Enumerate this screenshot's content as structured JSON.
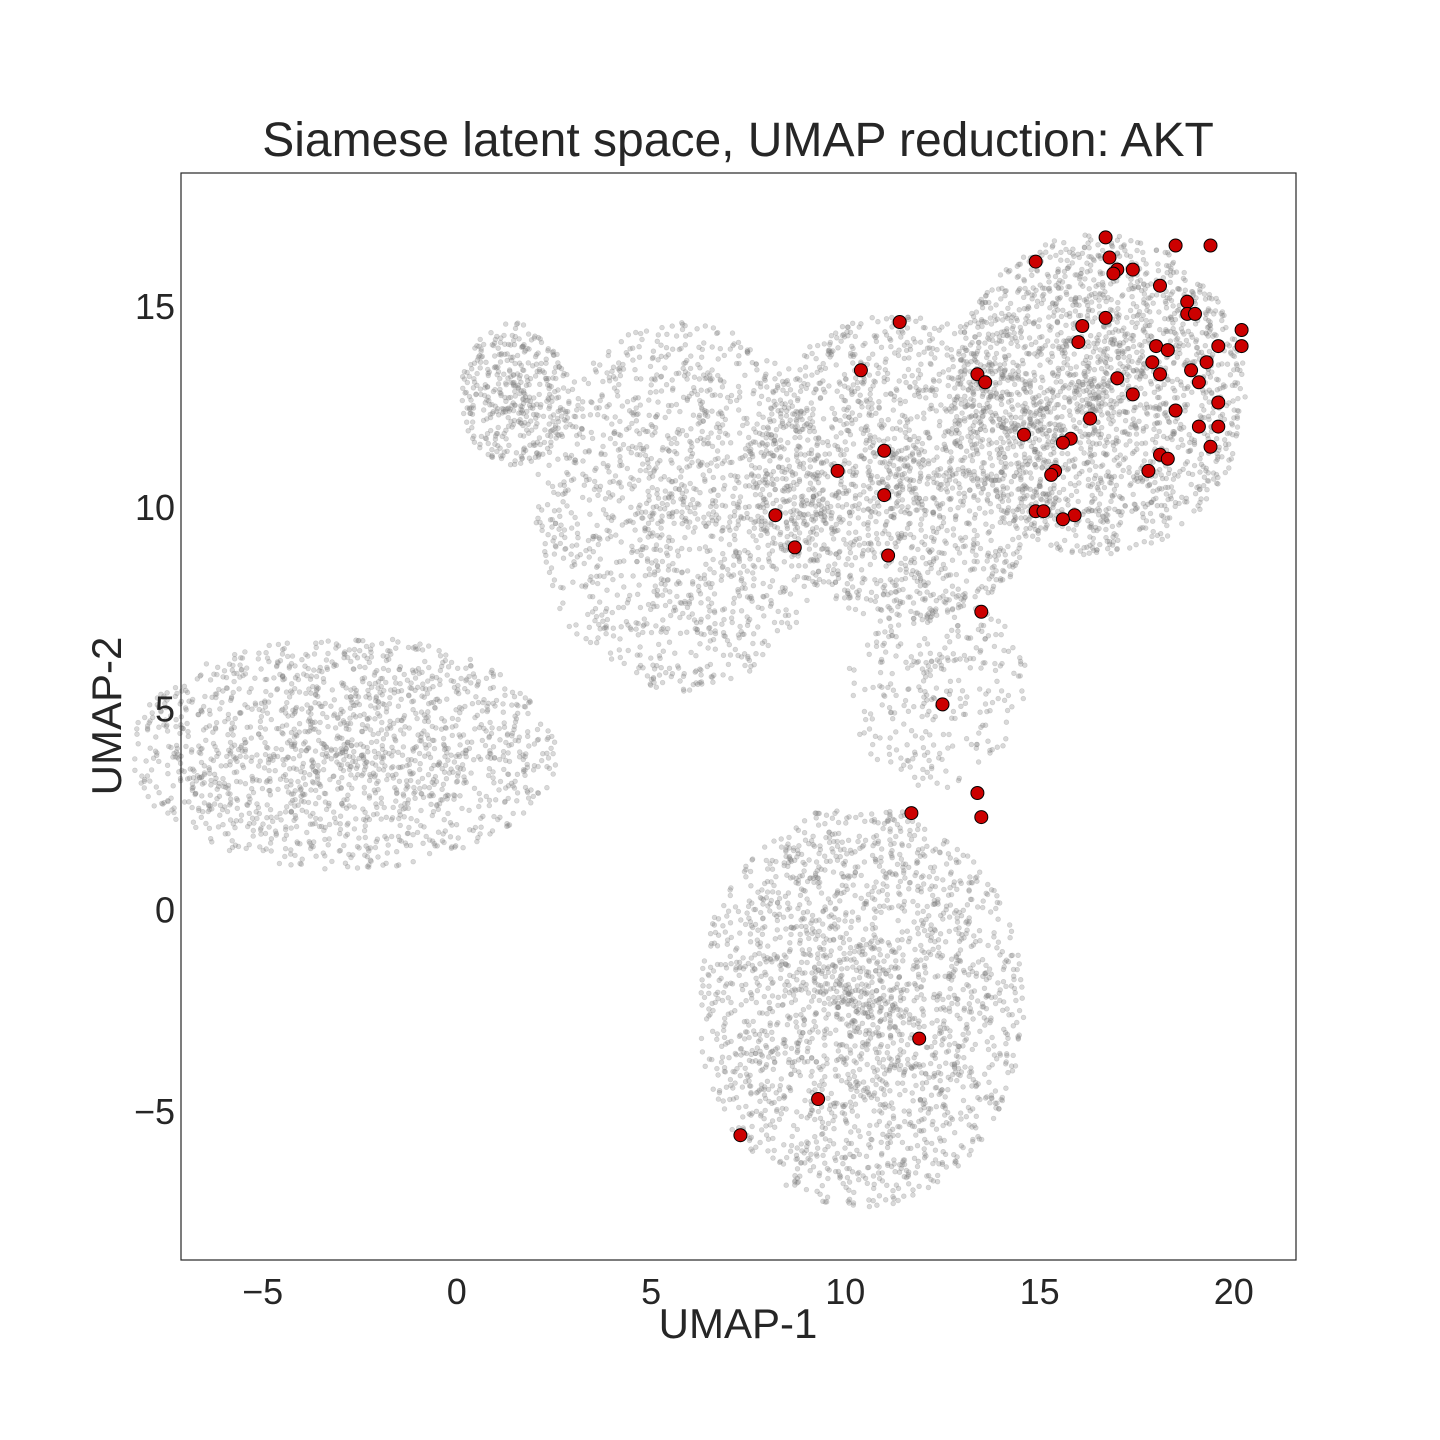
{
  "chart_data": {
    "type": "scatter",
    "title": "Siamese latent space, UMAP reduction: AKT",
    "xlabel": "UMAP-1",
    "ylabel": "UMAP-2",
    "xlim": [
      -7.1,
      21.6
    ],
    "ylim": [
      -8.7,
      18.3
    ],
    "x_ticks": [
      -5,
      0,
      5,
      10,
      15,
      20
    ],
    "x_tick_labels": [
      "−5",
      "0",
      "5",
      "10",
      "15",
      "20"
    ],
    "y_ticks": [
      -5,
      0,
      5,
      10,
      15
    ],
    "y_tick_labels": [
      "−5",
      "0",
      "5",
      "10",
      "15"
    ],
    "grid": false,
    "background_color": "#888888",
    "highlight_color": "#cc0000",
    "background_regions": [
      {
        "shape": "ellipse",
        "cx": -2.9,
        "cy": 3.9,
        "rx": 5.5,
        "ry": 2.9,
        "n": 1600
      },
      {
        "shape": "ellipse",
        "cx": 5.8,
        "cy": 10.0,
        "rx": 3.8,
        "ry": 4.6,
        "n": 1400
      },
      {
        "shape": "ellipse",
        "cx": 1.5,
        "cy": 12.8,
        "rx": 1.4,
        "ry": 1.8,
        "n": 400
      },
      {
        "shape": "ellipse",
        "cx": 11.5,
        "cy": 11.0,
        "rx": 4.0,
        "ry": 3.8,
        "n": 1600
      },
      {
        "shape": "ellipse",
        "cx": 16.5,
        "cy": 12.8,
        "rx": 3.8,
        "ry": 4.0,
        "n": 2000
      },
      {
        "shape": "ellipse",
        "cx": 12.3,
        "cy": 5.5,
        "rx": 2.4,
        "ry": 2.5,
        "n": 300
      },
      {
        "shape": "ellipse",
        "cx": 10.4,
        "cy": -2.4,
        "rx": 4.2,
        "ry": 5.0,
        "n": 2200
      }
    ],
    "highlight_points": [
      [
        16.7,
        16.7
      ],
      [
        18.5,
        16.5
      ],
      [
        19.4,
        16.5
      ],
      [
        14.9,
        16.1
      ],
      [
        16.8,
        16.2
      ],
      [
        17.0,
        15.9
      ],
      [
        16.9,
        15.8
      ],
      [
        17.4,
        15.9
      ],
      [
        18.1,
        15.5
      ],
      [
        18.8,
        15.1
      ],
      [
        18.8,
        14.8
      ],
      [
        19.0,
        14.8
      ],
      [
        11.4,
        14.6
      ],
      [
        16.7,
        14.7
      ],
      [
        16.1,
        14.5
      ],
      [
        20.2,
        14.4
      ],
      [
        20.2,
        14.0
      ],
      [
        16.0,
        14.1
      ],
      [
        19.6,
        14.0
      ],
      [
        18.0,
        14.0
      ],
      [
        18.3,
        13.9
      ],
      [
        19.3,
        13.6
      ],
      [
        17.9,
        13.6
      ],
      [
        18.9,
        13.4
      ],
      [
        18.1,
        13.3
      ],
      [
        10.4,
        13.4
      ],
      [
        13.4,
        13.3
      ],
      [
        13.6,
        13.1
      ],
      [
        17.0,
        13.2
      ],
      [
        19.1,
        13.1
      ],
      [
        17.4,
        12.8
      ],
      [
        19.6,
        12.6
      ],
      [
        18.5,
        12.4
      ],
      [
        16.3,
        12.2
      ],
      [
        19.1,
        12.0
      ],
      [
        19.6,
        12.0
      ],
      [
        14.6,
        11.8
      ],
      [
        15.8,
        11.7
      ],
      [
        15.6,
        11.6
      ],
      [
        19.4,
        11.5
      ],
      [
        11.0,
        11.4
      ],
      [
        18.1,
        11.3
      ],
      [
        18.3,
        11.2
      ],
      [
        15.4,
        10.9
      ],
      [
        17.8,
        10.9
      ],
      [
        15.3,
        10.8
      ],
      [
        9.8,
        10.9
      ],
      [
        11.0,
        10.3
      ],
      [
        14.9,
        9.9
      ],
      [
        15.1,
        9.9
      ],
      [
        15.9,
        9.8
      ],
      [
        15.6,
        9.7
      ],
      [
        8.2,
        9.8
      ],
      [
        8.7,
        9.0
      ],
      [
        11.1,
        8.8
      ],
      [
        13.5,
        7.4
      ],
      [
        12.5,
        5.1
      ],
      [
        13.4,
        2.9
      ],
      [
        13.5,
        2.3
      ],
      [
        11.7,
        2.4
      ],
      [
        11.9,
        -3.2
      ],
      [
        9.3,
        -4.7
      ],
      [
        7.3,
        -5.6
      ]
    ]
  }
}
